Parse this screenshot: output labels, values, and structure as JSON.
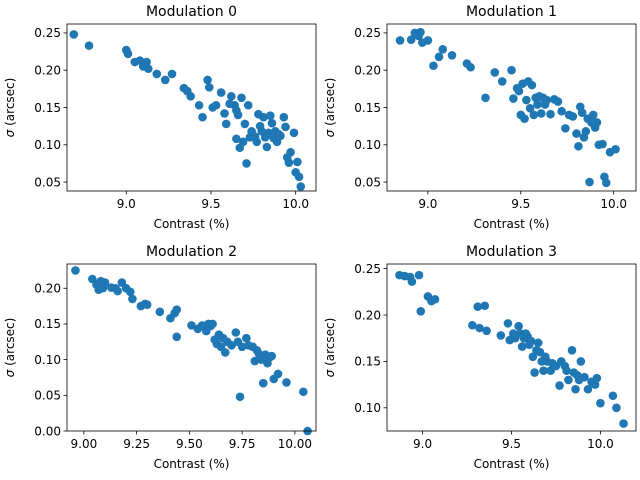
{
  "chart_data": [
    {
      "type": "scatter",
      "title": "Modulation 0",
      "xlabel": "Contrast (%)",
      "ylabel": "σ (arcsec)",
      "xlim": [
        8.65,
        10.12
      ],
      "ylim": [
        0.038,
        0.262
      ],
      "xticks": [
        9.0,
        9.5,
        10.0
      ],
      "yticks": [
        0.05,
        0.1,
        0.15,
        0.2,
        0.25
      ],
      "xtick_labels": [
        "9.0",
        "9.5",
        "10.0"
      ],
      "ytick_labels": [
        "0.05",
        "0.10",
        "0.15",
        "0.20",
        "0.25"
      ],
      "color": "#1f77b4",
      "points": [
        [
          8.69,
          0.248
        ],
        [
          8.78,
          0.233
        ],
        [
          9.0,
          0.227
        ],
        [
          9.01,
          0.222
        ],
        [
          9.05,
          0.211
        ],
        [
          9.08,
          0.213
        ],
        [
          9.1,
          0.205
        ],
        [
          9.12,
          0.211
        ],
        [
          9.13,
          0.202
        ],
        [
          9.18,
          0.195
        ],
        [
          9.23,
          0.187
        ],
        [
          9.27,
          0.195
        ],
        [
          9.34,
          0.176
        ],
        [
          9.36,
          0.172
        ],
        [
          9.38,
          0.165
        ],
        [
          9.43,
          0.153
        ],
        [
          9.45,
          0.137
        ],
        [
          9.48,
          0.187
        ],
        [
          9.49,
          0.177
        ],
        [
          9.51,
          0.15
        ],
        [
          9.53,
          0.153
        ],
        [
          9.56,
          0.17
        ],
        [
          9.58,
          0.142
        ],
        [
          9.59,
          0.128
        ],
        [
          9.61,
          0.155
        ],
        [
          9.62,
          0.165
        ],
        [
          9.64,
          0.153
        ],
        [
          9.65,
          0.146
        ],
        [
          9.65,
          0.108
        ],
        [
          9.66,
          0.14
        ],
        [
          9.67,
          0.096
        ],
        [
          9.68,
          0.163
        ],
        [
          9.69,
          0.104
        ],
        [
          9.7,
          0.128
        ],
        [
          9.71,
          0.075
        ],
        [
          9.72,
          0.153
        ],
        [
          9.73,
          0.11
        ],
        [
          9.74,
          0.118
        ],
        [
          9.76,
          0.111
        ],
        [
          9.77,
          0.104
        ],
        [
          9.78,
          0.141
        ],
        [
          9.79,
          0.125
        ],
        [
          9.8,
          0.118
        ],
        [
          9.81,
          0.137
        ],
        [
          9.82,
          0.11
        ],
        [
          9.83,
          0.097
        ],
        [
          9.84,
          0.116
        ],
        [
          9.85,
          0.139
        ],
        [
          9.86,
          0.129
        ],
        [
          9.87,
          0.109
        ],
        [
          9.88,
          0.118
        ],
        [
          9.89,
          0.104
        ],
        [
          9.9,
          0.114
        ],
        [
          9.91,
          0.112
        ],
        [
          9.93,
          0.137
        ],
        [
          9.94,
          0.124
        ],
        [
          9.95,
          0.083
        ],
        [
          9.96,
          0.076
        ],
        [
          9.97,
          0.09
        ],
        [
          9.99,
          0.116
        ],
        [
          10.0,
          0.063
        ],
        [
          10.01,
          0.077
        ],
        [
          10.02,
          0.057
        ],
        [
          10.03,
          0.044
        ]
      ]
    },
    {
      "type": "scatter",
      "title": "Modulation 1",
      "xlabel": "Contrast (%)",
      "ylabel": "σ (arcsec)",
      "xlim": [
        8.78,
        10.12
      ],
      "ylim": [
        0.038,
        0.262
      ],
      "xticks": [
        9.0,
        9.5,
        10.0
      ],
      "yticks": [
        0.05,
        0.1,
        0.15,
        0.2,
        0.25
      ],
      "xtick_labels": [
        "9.0",
        "9.5",
        "10.0"
      ],
      "ytick_labels": [
        "0.05",
        "0.10",
        "0.15",
        "0.20",
        "0.25"
      ],
      "color": "#1f77b4",
      "points": [
        [
          8.85,
          0.24
        ],
        [
          8.91,
          0.241
        ],
        [
          8.93,
          0.25
        ],
        [
          8.95,
          0.246
        ],
        [
          8.96,
          0.251
        ],
        [
          8.97,
          0.237
        ],
        [
          9.0,
          0.24
        ],
        [
          9.03,
          0.206
        ],
        [
          9.06,
          0.218
        ],
        [
          9.08,
          0.228
        ],
        [
          9.13,
          0.22
        ],
        [
          9.21,
          0.209
        ],
        [
          9.23,
          0.204
        ],
        [
          9.31,
          0.163
        ],
        [
          9.36,
          0.197
        ],
        [
          9.4,
          0.185
        ],
        [
          9.45,
          0.2
        ],
        [
          9.46,
          0.162
        ],
        [
          9.48,
          0.176
        ],
        [
          9.49,
          0.172
        ],
        [
          9.5,
          0.14
        ],
        [
          9.51,
          0.182
        ],
        [
          9.52,
          0.135
        ],
        [
          9.53,
          0.16
        ],
        [
          9.54,
          0.185
        ],
        [
          9.55,
          0.149
        ],
        [
          9.56,
          0.18
        ],
        [
          9.57,
          0.14
        ],
        [
          9.58,
          0.163
        ],
        [
          9.59,
          0.154
        ],
        [
          9.6,
          0.165
        ],
        [
          9.61,
          0.142
        ],
        [
          9.62,
          0.163
        ],
        [
          9.63,
          0.154
        ],
        [
          9.64,
          0.16
        ],
        [
          9.66,
          0.141
        ],
        [
          9.68,
          0.161
        ],
        [
          9.7,
          0.158
        ],
        [
          9.72,
          0.145
        ],
        [
          9.74,
          0.122
        ],
        [
          9.76,
          0.14
        ],
        [
          9.78,
          0.138
        ],
        [
          9.8,
          0.115
        ],
        [
          9.81,
          0.098
        ],
        [
          9.82,
          0.151
        ],
        [
          9.83,
          0.143
        ],
        [
          9.84,
          0.11
        ],
        [
          9.85,
          0.118
        ],
        [
          9.86,
          0.135
        ],
        [
          9.87,
          0.05
        ],
        [
          9.88,
          0.13
        ],
        [
          9.89,
          0.14
        ],
        [
          9.9,
          0.123
        ],
        [
          9.91,
          0.13
        ],
        [
          9.92,
          0.1
        ],
        [
          9.94,
          0.101
        ],
        [
          9.95,
          0.057
        ],
        [
          9.96,
          0.049
        ],
        [
          9.98,
          0.09
        ],
        [
          10.01,
          0.094
        ]
      ]
    },
    {
      "type": "scatter",
      "title": "Modulation 2",
      "xlabel": "Contrast (%)",
      "ylabel": "σ (arcsec)",
      "xlim": [
        8.92,
        10.1
      ],
      "ylim": [
        0.0,
        0.234
      ],
      "xticks": [
        9.0,
        9.25,
        9.5,
        9.75,
        10.0
      ],
      "yticks": [
        0.0,
        0.05,
        0.1,
        0.15,
        0.2
      ],
      "xtick_labels": [
        "9.00",
        "9.25",
        "9.50",
        "9.75",
        "10.00"
      ],
      "ytick_labels": [
        "0.00",
        "0.05",
        "0.10",
        "0.15",
        "0.20"
      ],
      "color": "#1f77b4",
      "points": [
        [
          8.96,
          0.225
        ],
        [
          9.04,
          0.213
        ],
        [
          9.06,
          0.205
        ],
        [
          9.07,
          0.198
        ],
        [
          9.08,
          0.21
        ],
        [
          9.09,
          0.2
        ],
        [
          9.1,
          0.208
        ],
        [
          9.13,
          0.201
        ],
        [
          9.15,
          0.2
        ],
        [
          9.16,
          0.196
        ],
        [
          9.18,
          0.208
        ],
        [
          9.2,
          0.2
        ],
        [
          9.22,
          0.195
        ],
        [
          9.23,
          0.185
        ],
        [
          9.27,
          0.175
        ],
        [
          9.29,
          0.178
        ],
        [
          9.3,
          0.177
        ],
        [
          9.36,
          0.167
        ],
        [
          9.41,
          0.158
        ],
        [
          9.43,
          0.165
        ],
        [
          9.44,
          0.17
        ],
        [
          9.44,
          0.132
        ],
        [
          9.51,
          0.148
        ],
        [
          9.54,
          0.143
        ],
        [
          9.56,
          0.148
        ],
        [
          9.58,
          0.14
        ],
        [
          9.59,
          0.15
        ],
        [
          9.6,
          0.147
        ],
        [
          9.61,
          0.15
        ],
        [
          9.62,
          0.128
        ],
        [
          9.63,
          0.122
        ],
        [
          9.64,
          0.135
        ],
        [
          9.65,
          0.118
        ],
        [
          9.66,
          0.13
        ],
        [
          9.67,
          0.11
        ],
        [
          9.68,
          0.125
        ],
        [
          9.7,
          0.12
        ],
        [
          9.72,
          0.138
        ],
        [
          9.73,
          0.125
        ],
        [
          9.74,
          0.048
        ],
        [
          9.75,
          0.118
        ],
        [
          9.77,
          0.13
        ],
        [
          9.78,
          0.12
        ],
        [
          9.8,
          0.118
        ],
        [
          9.81,
          0.098
        ],
        [
          9.82,
          0.113
        ],
        [
          9.83,
          0.108
        ],
        [
          9.84,
          0.1
        ],
        [
          9.85,
          0.067
        ],
        [
          9.86,
          0.107
        ],
        [
          9.87,
          0.095
        ],
        [
          9.88,
          0.103
        ],
        [
          9.89,
          0.105
        ],
        [
          9.9,
          0.073
        ],
        [
          9.92,
          0.08
        ],
        [
          9.96,
          0.068
        ],
        [
          10.04,
          0.055
        ],
        [
          10.06,
          0.0
        ]
      ]
    },
    {
      "type": "scatter",
      "title": "Modulation 3",
      "xlabel": "Contrast (%)",
      "ylabel": "σ (arcsec)",
      "xlim": [
        8.8,
        10.2
      ],
      "ylim": [
        0.075,
        0.255
      ],
      "xticks": [
        9.0,
        9.5,
        10.0
      ],
      "yticks": [
        0.1,
        0.15,
        0.2,
        0.25
      ],
      "xtick_labels": [
        "9.0",
        "9.5",
        "10.0"
      ],
      "ytick_labels": [
        "0.10",
        "0.15",
        "0.20",
        "0.25"
      ],
      "color": "#1f77b4",
      "points": [
        [
          8.87,
          0.243
        ],
        [
          8.9,
          0.242
        ],
        [
          8.93,
          0.241
        ],
        [
          8.94,
          0.236
        ],
        [
          8.98,
          0.243
        ],
        [
          8.99,
          0.204
        ],
        [
          9.03,
          0.22
        ],
        [
          9.05,
          0.215
        ],
        [
          9.07,
          0.217
        ],
        [
          9.28,
          0.189
        ],
        [
          9.31,
          0.209
        ],
        [
          9.32,
          0.186
        ],
        [
          9.35,
          0.21
        ],
        [
          9.36,
          0.183
        ],
        [
          9.44,
          0.178
        ],
        [
          9.48,
          0.191
        ],
        [
          9.49,
          0.173
        ],
        [
          9.51,
          0.18
        ],
        [
          9.52,
          0.175
        ],
        [
          9.54,
          0.188
        ],
        [
          9.55,
          0.18
        ],
        [
          9.56,
          0.166
        ],
        [
          9.57,
          0.175
        ],
        [
          9.58,
          0.18
        ],
        [
          9.59,
          0.177
        ],
        [
          9.6,
          0.168
        ],
        [
          9.61,
          0.172
        ],
        [
          9.62,
          0.155
        ],
        [
          9.63,
          0.138
        ],
        [
          9.64,
          0.162
        ],
        [
          9.65,
          0.17
        ],
        [
          9.66,
          0.16
        ],
        [
          9.67,
          0.15
        ],
        [
          9.68,
          0.14
        ],
        [
          9.69,
          0.155
        ],
        [
          9.7,
          0.15
        ],
        [
          9.72,
          0.14
        ],
        [
          9.73,
          0.148
        ],
        [
          9.75,
          0.145
        ],
        [
          9.77,
          0.124
        ],
        [
          9.78,
          0.15
        ],
        [
          9.8,
          0.145
        ],
        [
          9.81,
          0.14
        ],
        [
          9.82,
          0.13
        ],
        [
          9.84,
          0.162
        ],
        [
          9.85,
          0.138
        ],
        [
          9.86,
          0.12
        ],
        [
          9.87,
          0.135
        ],
        [
          9.88,
          0.13
        ],
        [
          9.89,
          0.15
        ],
        [
          9.91,
          0.133
        ],
        [
          9.93,
          0.12
        ],
        [
          9.95,
          0.128
        ],
        [
          9.97,
          0.125
        ],
        [
          9.98,
          0.132
        ],
        [
          10.0,
          0.105
        ],
        [
          10.07,
          0.113
        ],
        [
          10.09,
          0.1
        ],
        [
          10.13,
          0.083
        ]
      ]
    }
  ]
}
